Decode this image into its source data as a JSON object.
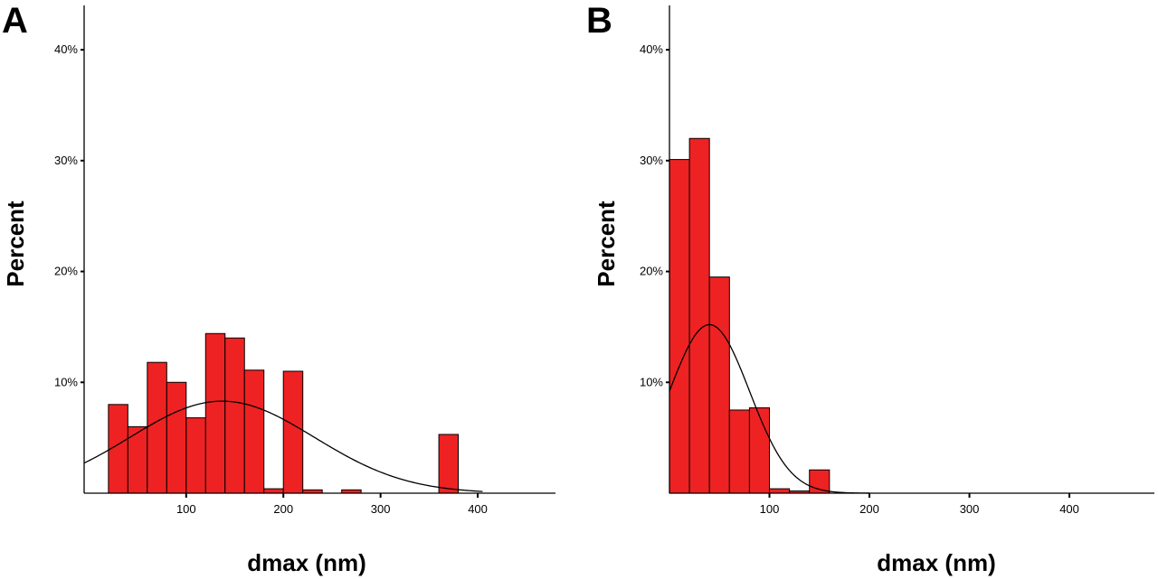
{
  "chart_data": [
    {
      "type": "bar",
      "panel_label": "A",
      "xlabel": "dmax (nm)",
      "ylabel": "Percent",
      "xlim": [
        -5,
        480
      ],
      "ylim": [
        0,
        44
      ],
      "x_ticks": [
        100,
        200,
        300,
        400
      ],
      "x_tick_labels": [
        "100",
        "200",
        "300",
        "400"
      ],
      "y_ticks": [
        10,
        20,
        30,
        40
      ],
      "y_tick_labels": [
        "10%",
        "20%",
        "30%",
        "40%"
      ],
      "bin_width": 20,
      "bins": [
        {
          "x0": 20,
          "value": 8.0
        },
        {
          "x0": 40,
          "value": 6.0
        },
        {
          "x0": 60,
          "value": 11.8
        },
        {
          "x0": 80,
          "value": 10.0
        },
        {
          "x0": 100,
          "value": 6.8
        },
        {
          "x0": 120,
          "value": 14.4
        },
        {
          "x0": 140,
          "value": 14.0
        },
        {
          "x0": 160,
          "value": 11.1
        },
        {
          "x0": 180,
          "value": 0.4
        },
        {
          "x0": 200,
          "value": 11.0
        },
        {
          "x0": 220,
          "value": 0.3
        },
        {
          "x0": 260,
          "value": 0.3
        },
        {
          "x0": 360,
          "value": 5.3
        }
      ],
      "curve": {
        "type": "normal",
        "mean": 137,
        "sd": 95,
        "peak": 8.3,
        "x_start": -5,
        "x_end": 405
      },
      "grid": false
    },
    {
      "type": "bar",
      "panel_label": "B",
      "xlabel": "dmax (nm)",
      "ylabel": "Percent",
      "xlim": [
        0,
        485
      ],
      "ylim": [
        0,
        44
      ],
      "x_ticks": [
        100,
        200,
        300,
        400
      ],
      "x_tick_labels": [
        "100",
        "200",
        "300",
        "400"
      ],
      "y_ticks": [
        10,
        20,
        30,
        40
      ],
      "y_tick_labels": [
        "10%",
        "20%",
        "30%",
        "40%"
      ],
      "bin_width": 20,
      "bins": [
        {
          "x0": 0,
          "value": 30.1
        },
        {
          "x0": 20,
          "value": 32.0
        },
        {
          "x0": 40,
          "value": 19.5
        },
        {
          "x0": 60,
          "value": 7.5
        },
        {
          "x0": 80,
          "value": 7.7
        },
        {
          "x0": 100,
          "value": 0.4
        },
        {
          "x0": 120,
          "value": 0.2
        },
        {
          "x0": 140,
          "value": 2.1
        }
      ],
      "curve": {
        "type": "normal",
        "mean": 40,
        "sd": 40,
        "peak": 15.2,
        "x_start": 0,
        "x_end": 200
      },
      "grid": false
    }
  ]
}
